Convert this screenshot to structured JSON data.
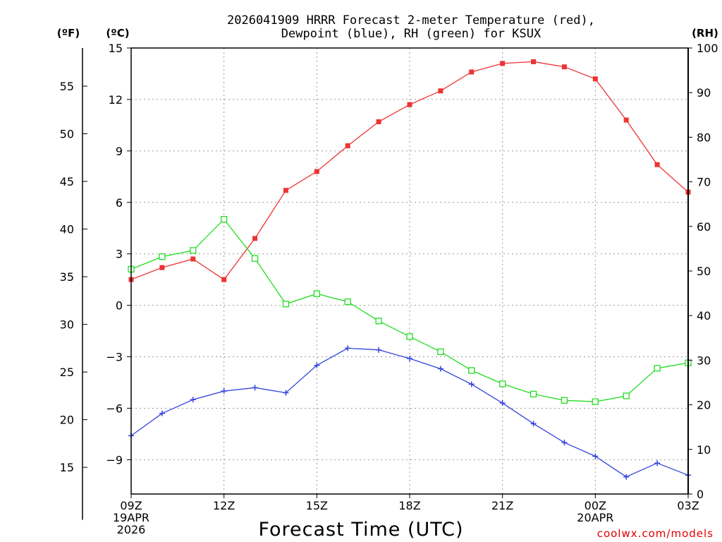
{
  "chart_data": {
    "type": "line",
    "title_line1": "2026041909 HRRR Forecast 2-meter Temperature (red),",
    "title_line2": "Dewpoint (blue), RH (green) for KSUX",
    "xlabel": "Forecast Time (UTC)",
    "credit": "coolwx.com/models",
    "unit_f": "(ºF)",
    "unit_c": "(ºC)",
    "unit_rh": "(RH)",
    "x_hours": [
      0,
      1,
      2,
      3,
      4,
      5,
      6,
      7,
      8,
      9,
      10,
      11,
      12,
      13,
      14,
      15,
      16,
      17,
      18
    ],
    "x_ticks": [
      {
        "hour": 0,
        "lines": [
          "09Z",
          "19APR",
          "2026"
        ]
      },
      {
        "hour": 3,
        "lines": [
          "12Z"
        ]
      },
      {
        "hour": 6,
        "lines": [
          "15Z"
        ]
      },
      {
        "hour": 9,
        "lines": [
          "18Z"
        ]
      },
      {
        "hour": 12,
        "lines": [
          "21Z"
        ]
      },
      {
        "hour": 15,
        "lines": [
          "00Z",
          "20APR"
        ]
      },
      {
        "hour": 18,
        "lines": [
          "03Z"
        ]
      }
    ],
    "ylim_c": [
      -11,
      15
    ],
    "yticks_c": [
      15,
      12,
      9,
      6,
      3,
      0,
      -3,
      -6,
      -9
    ],
    "yticks_f": [
      55,
      50,
      45,
      40,
      35,
      30,
      25,
      20,
      15
    ],
    "ylim_rh": [
      0,
      100
    ],
    "yticks_rh": [
      100,
      90,
      80,
      70,
      60,
      50,
      40,
      30,
      20,
      10,
      0
    ],
    "series": [
      {
        "name": "Temperature",
        "color": "#ee3333",
        "marker": "filled-square",
        "axis": "c",
        "values": [
          1.5,
          2.2,
          2.7,
          1.5,
          3.9,
          6.7,
          7.8,
          9.3,
          10.7,
          11.7,
          12.5,
          13.6,
          14.1,
          14.2,
          13.9,
          13.2,
          10.8,
          8.2,
          6.6
        ]
      },
      {
        "name": "Dewpoint",
        "color": "#3344dd",
        "marker": "plus",
        "axis": "c",
        "values": [
          -7.6,
          -6.3,
          -5.5,
          -5.0,
          -4.8,
          -5.1,
          -3.5,
          -2.5,
          -2.6,
          -3.1,
          -3.7,
          -4.6,
          -5.7,
          -6.9,
          -8.0,
          -8.8,
          -10.0,
          -9.2,
          -9.9
        ]
      },
      {
        "name": "RH",
        "color": "#22dd22",
        "marker": "open-square",
        "axis": "rh",
        "values": [
          50.4,
          53.2,
          54.6,
          61.6,
          52.8,
          42.6,
          44.9,
          43.1,
          38.8,
          35.3,
          31.9,
          27.7,
          24.7,
          22.4,
          21.0,
          20.7,
          22.0,
          28.2,
          29.4
        ]
      }
    ]
  }
}
